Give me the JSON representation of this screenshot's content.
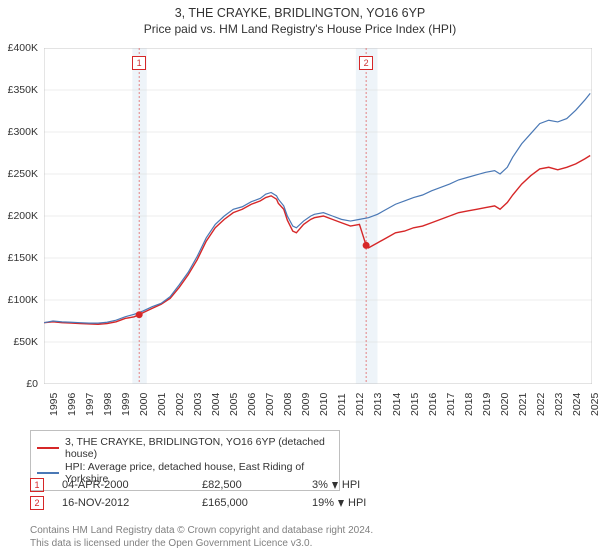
{
  "title": "3, THE CRAYKE, BRIDLINGTON, YO16 6YP",
  "subtitle": "Price paid vs. HM Land Registry's House Price Index (HPI)",
  "chart": {
    "type": "line",
    "background_color": "#ffffff",
    "grid_color": "#d9d9d9",
    "shaded_band_color": "#eef4f9",
    "marker_dashed_color": "#e06666",
    "marker_number_text_color": "#cc3333",
    "x_years": [
      1995,
      1996,
      1997,
      1998,
      1999,
      2000,
      2001,
      2002,
      2003,
      2004,
      2005,
      2006,
      2007,
      2008,
      2009,
      2010,
      2011,
      2012,
      2013,
      2014,
      2015,
      2016,
      2017,
      2018,
      2019,
      2020,
      2021,
      2022,
      2023,
      2024,
      2025
    ],
    "xlim": [
      1995,
      2025.4
    ],
    "ylim": [
      0,
      400000
    ],
    "ytick_step": 50000,
    "y_labels": [
      "£0",
      "£50K",
      "£100K",
      "£150K",
      "£200K",
      "£250K",
      "£300K",
      "£350K",
      "£400K"
    ],
    "title_fontsize": 12.5,
    "label_fontsize": 10.5,
    "series": [
      {
        "name": "property",
        "color": "#d62728",
        "width": 1.4,
        "points": [
          [
            1995,
            73000
          ],
          [
            1995.5,
            74000
          ],
          [
            1996,
            73000
          ],
          [
            1996.5,
            72500
          ],
          [
            1997,
            72000
          ],
          [
            1997.5,
            71500
          ],
          [
            1998,
            71000
          ],
          [
            1998.5,
            72000
          ],
          [
            1999,
            74000
          ],
          [
            1999.5,
            78000
          ],
          [
            2000,
            80000
          ],
          [
            2000.28,
            82500
          ],
          [
            2000.5,
            85000
          ],
          [
            2001,
            90000
          ],
          [
            2001.5,
            95000
          ],
          [
            2002,
            102000
          ],
          [
            2002.5,
            115000
          ],
          [
            2003,
            130000
          ],
          [
            2003.5,
            148000
          ],
          [
            2004,
            170000
          ],
          [
            2004.5,
            186000
          ],
          [
            2005,
            196000
          ],
          [
            2005.5,
            204000
          ],
          [
            2006,
            208000
          ],
          [
            2006.5,
            214000
          ],
          [
            2007,
            218000
          ],
          [
            2007.3,
            222000
          ],
          [
            2007.6,
            224000
          ],
          [
            2007.9,
            220000
          ],
          [
            2008,
            215000
          ],
          [
            2008.3,
            208000
          ],
          [
            2008.5,
            195000
          ],
          [
            2008.8,
            182000
          ],
          [
            2009,
            180000
          ],
          [
            2009.4,
            190000
          ],
          [
            2009.8,
            196000
          ],
          [
            2010,
            198000
          ],
          [
            2010.5,
            200000
          ],
          [
            2011,
            196000
          ],
          [
            2011.5,
            192000
          ],
          [
            2012,
            188000
          ],
          [
            2012.5,
            190000
          ],
          [
            2012.87,
            165000
          ],
          [
            2013,
            162000
          ],
          [
            2013.5,
            168000
          ],
          [
            2014,
            174000
          ],
          [
            2014.5,
            180000
          ],
          [
            2015,
            182000
          ],
          [
            2015.5,
            186000
          ],
          [
            2016,
            188000
          ],
          [
            2016.5,
            192000
          ],
          [
            2017,
            196000
          ],
          [
            2017.5,
            200000
          ],
          [
            2018,
            204000
          ],
          [
            2018.5,
            206000
          ],
          [
            2019,
            208000
          ],
          [
            2019.5,
            210000
          ],
          [
            2020,
            212000
          ],
          [
            2020.3,
            208000
          ],
          [
            2020.7,
            216000
          ],
          [
            2021,
            225000
          ],
          [
            2021.5,
            238000
          ],
          [
            2022,
            248000
          ],
          [
            2022.5,
            256000
          ],
          [
            2023,
            258000
          ],
          [
            2023.5,
            255000
          ],
          [
            2024,
            258000
          ],
          [
            2024.5,
            262000
          ],
          [
            2025,
            268000
          ],
          [
            2025.3,
            272000
          ]
        ]
      },
      {
        "name": "hpi",
        "color": "#4a78b5",
        "width": 1.2,
        "points": [
          [
            1995,
            73000
          ],
          [
            1995.5,
            75000
          ],
          [
            1996,
            74000
          ],
          [
            1996.5,
            73500
          ],
          [
            1997,
            73000
          ],
          [
            1997.5,
            72500
          ],
          [
            1998,
            72500
          ],
          [
            1998.5,
            73500
          ],
          [
            1999,
            76000
          ],
          [
            1999.5,
            80000
          ],
          [
            2000,
            83000
          ],
          [
            2000.5,
            87000
          ],
          [
            2001,
            92000
          ],
          [
            2001.5,
            96000
          ],
          [
            2002,
            104000
          ],
          [
            2002.5,
            118000
          ],
          [
            2003,
            133000
          ],
          [
            2003.5,
            152000
          ],
          [
            2004,
            174000
          ],
          [
            2004.5,
            190000
          ],
          [
            2005,
            200000
          ],
          [
            2005.5,
            208000
          ],
          [
            2006,
            211000
          ],
          [
            2006.5,
            217000
          ],
          [
            2007,
            221000
          ],
          [
            2007.3,
            226000
          ],
          [
            2007.6,
            228000
          ],
          [
            2007.9,
            224000
          ],
          [
            2008,
            220000
          ],
          [
            2008.3,
            212000
          ],
          [
            2008.5,
            200000
          ],
          [
            2008.8,
            188000
          ],
          [
            2009,
            186000
          ],
          [
            2009.4,
            194000
          ],
          [
            2009.8,
            200000
          ],
          [
            2010,
            202000
          ],
          [
            2010.5,
            204000
          ],
          [
            2011,
            200000
          ],
          [
            2011.5,
            196000
          ],
          [
            2012,
            194000
          ],
          [
            2012.5,
            196000
          ],
          [
            2013,
            198000
          ],
          [
            2013.5,
            202000
          ],
          [
            2014,
            208000
          ],
          [
            2014.5,
            214000
          ],
          [
            2015,
            218000
          ],
          [
            2015.5,
            222000
          ],
          [
            2016,
            225000
          ],
          [
            2016.5,
            230000
          ],
          [
            2017,
            234000
          ],
          [
            2017.5,
            238000
          ],
          [
            2018,
            243000
          ],
          [
            2018.5,
            246000
          ],
          [
            2019,
            249000
          ],
          [
            2019.5,
            252000
          ],
          [
            2020,
            254000
          ],
          [
            2020.3,
            250000
          ],
          [
            2020.7,
            258000
          ],
          [
            2021,
            270000
          ],
          [
            2021.5,
            286000
          ],
          [
            2022,
            298000
          ],
          [
            2022.5,
            310000
          ],
          [
            2023,
            314000
          ],
          [
            2023.5,
            312000
          ],
          [
            2024,
            316000
          ],
          [
            2024.5,
            326000
          ],
          [
            2025,
            338000
          ],
          [
            2025.3,
            346000
          ]
        ]
      }
    ],
    "shaded_bands": [
      {
        "x_start": 1999.9,
        "x_end": 2000.7
      },
      {
        "x_start": 2012.3,
        "x_end": 2013.5
      }
    ],
    "sale_markers": [
      {
        "num": "1",
        "x": 2000.28,
        "y": 82500
      },
      {
        "num": "2",
        "x": 2012.87,
        "y": 165000
      }
    ],
    "marker_labels_y_top": true
  },
  "legend": {
    "items": [
      {
        "color": "#d62728",
        "label": "3, THE CRAYKE, BRIDLINGTON, YO16 6YP (detached house)"
      },
      {
        "color": "#4a78b5",
        "label": "HPI: Average price, detached house, East Riding of Yorkshire"
      }
    ]
  },
  "sales": [
    {
      "num": "1",
      "color": "#d62728",
      "date": "04-APR-2000",
      "price": "£82,500",
      "diff": "3%",
      "direction": "down",
      "diff_label": "HPI"
    },
    {
      "num": "2",
      "color": "#d62728",
      "date": "16-NOV-2012",
      "price": "£165,000",
      "diff": "19%",
      "direction": "down",
      "diff_label": "HPI"
    }
  ],
  "footer": {
    "line1": "Contains HM Land Registry data © Crown copyright and database right 2024.",
    "line2": "This data is licensed under the Open Government Licence v3.0."
  }
}
